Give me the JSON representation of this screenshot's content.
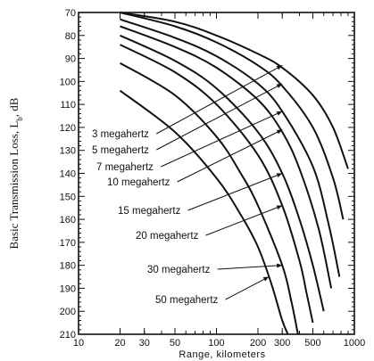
{
  "chart_data": {
    "type": "line",
    "title": "",
    "xlabel": "Range, kilometers",
    "ylabel_main": "Basic Transmission Loss, L",
    "ylabel_sub": "b",
    "ylabel_unit": ", dB",
    "x_scale": "log",
    "xlim": [
      10,
      1000
    ],
    "ylim": [
      70,
      210
    ],
    "y_inverted": true,
    "x_ticks": [
      10,
      20,
      30,
      50,
      100,
      200,
      300,
      500,
      1000
    ],
    "x_tick_labels": [
      "10",
      "20",
      "30",
      "50",
      "100",
      "200",
      "300",
      "500",
      "1000"
    ],
    "y_ticks": [
      70,
      80,
      90,
      100,
      110,
      120,
      130,
      140,
      150,
      160,
      170,
      180,
      190,
      200,
      210
    ],
    "y_tick_labels": [
      "70",
      "80",
      "90",
      "100",
      "110",
      "120",
      "130",
      "140",
      "150",
      "160",
      "170",
      "180",
      "190",
      "200",
      "210"
    ],
    "grid": false,
    "series": [
      {
        "name": "3 megahertz",
        "x": [
          20,
          50,
          100,
          200,
          300,
          500,
          700,
          900
        ],
        "y": [
          70,
          74,
          80,
          88,
          94,
          106,
          120,
          138
        ]
      },
      {
        "name": "5 megahertz",
        "x": [
          20,
          50,
          100,
          200,
          300,
          500,
          700,
          830
        ],
        "y": [
          70,
          76,
          83,
          93,
          102,
          120,
          142,
          160
        ]
      },
      {
        "name": "7 megahertz",
        "x": [
          20,
          50,
          100,
          200,
          300,
          500,
          650,
          780
        ],
        "y": [
          73,
          81,
          89,
          101,
          113,
          137,
          162,
          185
        ]
      },
      {
        "name": "10 megahertz",
        "x": [
          20,
          50,
          100,
          200,
          300,
          400,
          550,
          680
        ],
        "y": [
          76,
          85,
          94,
          108,
          122,
          138,
          164,
          190
        ]
      },
      {
        "name": "15 megahertz",
        "x": [
          20,
          50,
          100,
          200,
          300,
          400,
          500,
          600
        ],
        "y": [
          80,
          91,
          103,
          122,
          140,
          160,
          180,
          200
        ]
      },
      {
        "name": "20 megahertz",
        "x": [
          20,
          50,
          100,
          200,
          300,
          400,
          450,
          500
        ],
        "y": [
          84,
          96,
          110,
          132,
          154,
          178,
          192,
          205
        ]
      },
      {
        "name": "30 megahertz",
        "x": [
          20,
          50,
          100,
          150,
          200,
          300,
          350,
          390
        ],
        "y": [
          92,
          106,
          124,
          140,
          154,
          180,
          196,
          210
        ]
      },
      {
        "name": "50 megahertz",
        "x": [
          20,
          50,
          100,
          150,
          200,
          250,
          300,
          330
        ],
        "y": [
          104,
          122,
          142,
          158,
          172,
          188,
          204,
          210
        ]
      }
    ],
    "annotations": [
      {
        "text": "3 megahertz",
        "target_x": 300,
        "target_y": 93
      },
      {
        "text": "5 megahertz",
        "target_x": 300,
        "target_y": 101
      },
      {
        "text": "7 megahertz",
        "target_x": 300,
        "target_y": 113
      },
      {
        "text": "10 megahertz",
        "target_x": 300,
        "target_y": 121
      },
      {
        "text": "15 megahertz",
        "target_x": 300,
        "target_y": 140
      },
      {
        "text": "20 megahertz",
        "target_x": 300,
        "target_y": 154
      },
      {
        "text": "30 megahertz",
        "target_x": 300,
        "target_y": 180
      },
      {
        "text": "50 megahertz",
        "target_x": 240,
        "target_y": 185
      }
    ]
  }
}
